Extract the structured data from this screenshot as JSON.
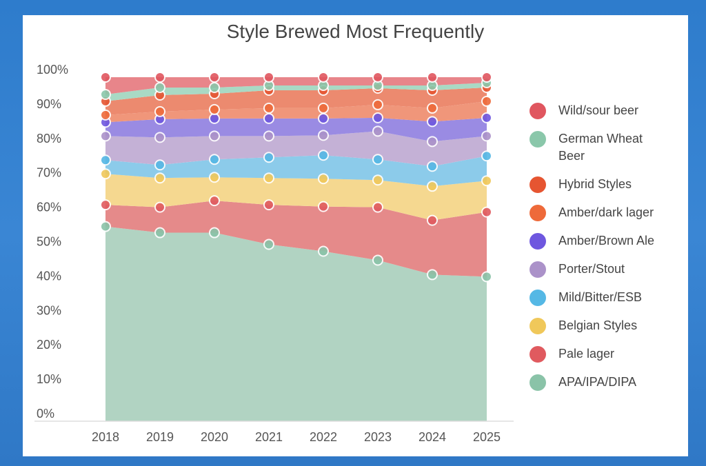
{
  "chart_data": {
    "type": "area",
    "stacked": true,
    "title": "Style Brewed Most Frequently",
    "xlabel": "",
    "ylabel": "",
    "ylim": [
      0,
      100
    ],
    "yticks": [
      "0%",
      "10%",
      "20%",
      "30%",
      "40%",
      "50%",
      "60%",
      "70%",
      "80%",
      "90%",
      "100%"
    ],
    "categories": [
      "2018",
      "2019",
      "2020",
      "2021",
      "2022",
      "2023",
      "2024",
      "2025"
    ],
    "legend_position": "right",
    "series": [
      {
        "name": "APA/IPA/DIPA",
        "fill": "#b1d3c2",
        "dot": "#8ac3a8",
        "values": [
          56.6,
          54.8,
          54.8,
          51.4,
          49.4,
          46.8,
          42.6,
          42.0
        ]
      },
      {
        "name": "Pale lager",
        "fill": "#e58a8a",
        "dot": "#e05a5f",
        "values": [
          6.3,
          7.4,
          9.3,
          11.5,
          13.0,
          15.4,
          15.8,
          18.8
        ]
      },
      {
        "name": "Belgian Styles",
        "fill": "#f5d890",
        "dot": "#f0c85a",
        "values": [
          9.0,
          8.5,
          6.8,
          7.8,
          8.1,
          7.9,
          9.9,
          9.1
        ]
      },
      {
        "name": "Mild/Bitter/ESB",
        "fill": "#8ccbea",
        "dot": "#55b8e5",
        "values": [
          4.0,
          3.8,
          5.2,
          6.0,
          6.8,
          6.0,
          5.8,
          7.2
        ]
      },
      {
        "name": "Porter/Stout",
        "fill": "#c4b1d6",
        "dot": "#ab92c9",
        "values": [
          7.0,
          8.0,
          6.8,
          6.2,
          5.8,
          8.2,
          7.2,
          5.8
        ]
      },
      {
        "name": "Amber/Brown Ale",
        "fill": "#9a8be3",
        "dot": "#6e57df",
        "values": [
          4.0,
          5.3,
          5.1,
          5.1,
          4.9,
          3.9,
          5.8,
          5.3
        ]
      },
      {
        "name": "Amber/dark lager",
        "fill": "#f0967a",
        "dot": "#ee6a3a",
        "values": [
          2.1,
          2.2,
          2.6,
          3.0,
          3.0,
          3.8,
          3.9,
          4.8
        ]
      },
      {
        "name": "Hybrid Styles",
        "fill": "#ec8a6f",
        "dot": "#e65531",
        "values": [
          4.0,
          4.8,
          4.6,
          5.2,
          5.2,
          4.8,
          5.2,
          4.0
        ]
      },
      {
        "name": "German Wheat Beer",
        "fill": "#a9d9c4",
        "dot": "#8ac7aa",
        "values": [
          2.0,
          2.2,
          1.8,
          1.4,
          1.4,
          0.8,
          1.4,
          1.4
        ]
      },
      {
        "name": "Wild/sour beer",
        "fill": "#e8858a",
        "dot": "#e0565f",
        "values": [
          5.0,
          3.0,
          3.0,
          2.4,
          2.4,
          2.4,
          2.4,
          1.6
        ]
      }
    ]
  }
}
